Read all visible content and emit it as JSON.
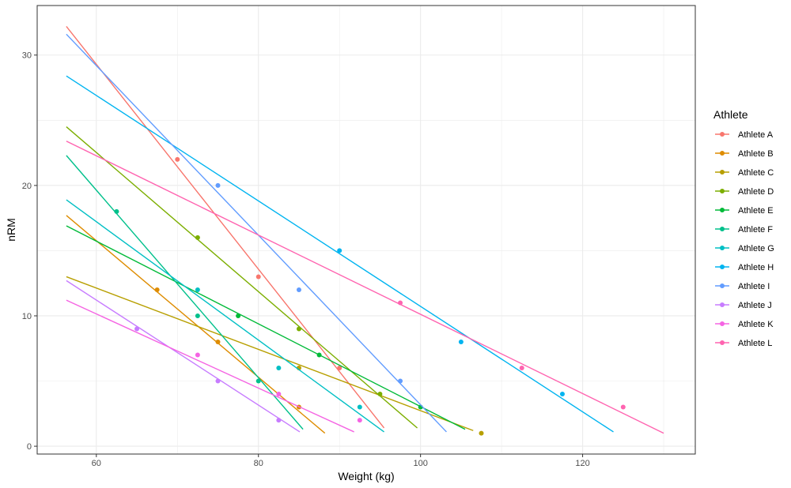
{
  "chart_data": {
    "type": "scatter",
    "title": "",
    "xlabel": "Weight (kg)",
    "ylabel": "nRM",
    "xlim": [
      52.7,
      133.9
    ],
    "ylim": [
      -0.6,
      33.8
    ],
    "x_ticks": [
      60,
      80,
      100,
      120
    ],
    "y_ticks": [
      0,
      10,
      20,
      30
    ],
    "grid": true,
    "legend": {
      "title": "Athlete",
      "placement": "right"
    },
    "series": [
      {
        "name": "Athlete A",
        "color": "#F8766D",
        "points": [
          [
            70,
            22
          ],
          [
            80,
            13
          ],
          [
            90,
            6
          ]
        ],
        "fit_line": [
          [
            56.3,
            32.2
          ],
          [
            95.5,
            1.4
          ]
        ]
      },
      {
        "name": "Athlete B",
        "color": "#DE8C00",
        "points": [
          [
            67.5,
            12
          ],
          [
            75,
            8
          ],
          [
            85,
            3
          ]
        ],
        "fit_line": [
          [
            56.3,
            17.7
          ],
          [
            88.2,
            1.0
          ]
        ]
      },
      {
        "name": "Athlete C",
        "color": "#B79F00",
        "points": [
          [
            85,
            6
          ],
          [
            107.5,
            1
          ]
        ],
        "fit_line": [
          [
            56.3,
            13.0
          ],
          [
            106.5,
            1.2
          ]
        ]
      },
      {
        "name": "Athlete D",
        "color": "#7CAE00",
        "points": [
          [
            72.5,
            16
          ],
          [
            85,
            9
          ],
          [
            95,
            4
          ]
        ],
        "fit_line": [
          [
            56.3,
            24.5
          ],
          [
            99.6,
            1.4
          ]
        ]
      },
      {
        "name": "Athlete E",
        "color": "#00BA38",
        "points": [
          [
            77.5,
            10
          ],
          [
            87.5,
            7
          ],
          [
            100,
            3
          ]
        ],
        "fit_line": [
          [
            56.3,
            16.9
          ],
          [
            105.5,
            1.3
          ]
        ]
      },
      {
        "name": "Athlete F",
        "color": "#00C08B",
        "points": [
          [
            62.5,
            18
          ],
          [
            72.5,
            10
          ],
          [
            80,
            5
          ]
        ],
        "fit_line": [
          [
            56.3,
            22.3
          ],
          [
            85.5,
            1.3
          ]
        ]
      },
      {
        "name": "Athlete G",
        "color": "#00BFC4",
        "points": [
          [
            72.5,
            12
          ],
          [
            82.5,
            6
          ],
          [
            92.5,
            3
          ]
        ],
        "fit_line": [
          [
            56.3,
            18.9
          ],
          [
            95.5,
            1.1
          ]
        ]
      },
      {
        "name": "Athlete H",
        "color": "#00B4F0",
        "points": [
          [
            90,
            15
          ],
          [
            105,
            8
          ],
          [
            117.5,
            4
          ]
        ],
        "fit_line": [
          [
            56.3,
            28.4
          ],
          [
            123.8,
            1.1
          ]
        ]
      },
      {
        "name": "Athlete I",
        "color": "#619CFF",
        "points": [
          [
            75,
            20
          ],
          [
            85,
            12
          ],
          [
            97.5,
            5
          ]
        ],
        "fit_line": [
          [
            56.3,
            31.6
          ],
          [
            103.2,
            1.1
          ]
        ]
      },
      {
        "name": "Athlete J",
        "color": "#C77CFF",
        "points": [
          [
            65,
            9
          ],
          [
            75,
            5
          ],
          [
            82.5,
            2
          ]
        ],
        "fit_line": [
          [
            56.3,
            12.7
          ],
          [
            85.1,
            1.1
          ]
        ]
      },
      {
        "name": "Athlete K",
        "color": "#F564E3",
        "points": [
          [
            72.5,
            7
          ],
          [
            82.5,
            4
          ],
          [
            92.5,
            2
          ]
        ],
        "fit_line": [
          [
            56.3,
            11.2
          ],
          [
            91.8,
            1.1
          ]
        ]
      },
      {
        "name": "Athlete L",
        "color": "#FF64B0",
        "points": [
          [
            97.5,
            11
          ],
          [
            112.5,
            6
          ],
          [
            125,
            3
          ]
        ],
        "fit_line": [
          [
            56.3,
            23.4
          ],
          [
            130,
            1.0
          ]
        ]
      }
    ]
  }
}
